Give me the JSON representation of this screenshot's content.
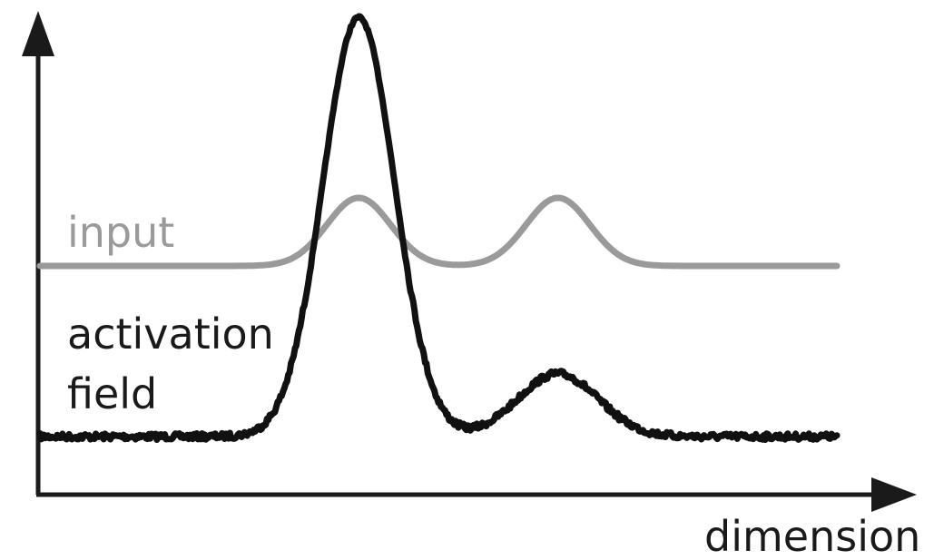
{
  "labels": {
    "input": "input",
    "activation_field": "activation\nfield",
    "x_axis": "dimension"
  },
  "colors": {
    "axis": "#1a1a1a",
    "input_curve": "#9a9a9a",
    "activation_curve": "#111111",
    "background": "#ffffff"
  },
  "curves": {
    "input": {
      "baseline": 0,
      "bumps": [
        {
          "center": 0.4,
          "amplitude": 1.0,
          "width": 0.04
        },
        {
          "center": 0.65,
          "amplitude": 1.0,
          "width": 0.04
        }
      ]
    },
    "activation": {
      "baseline": 0,
      "noisy": true,
      "peaks": [
        {
          "center": 0.4,
          "amplitude": 1.0,
          "width": 0.045
        },
        {
          "center": 0.65,
          "amplitude": 0.15,
          "width": 0.05
        }
      ]
    }
  }
}
